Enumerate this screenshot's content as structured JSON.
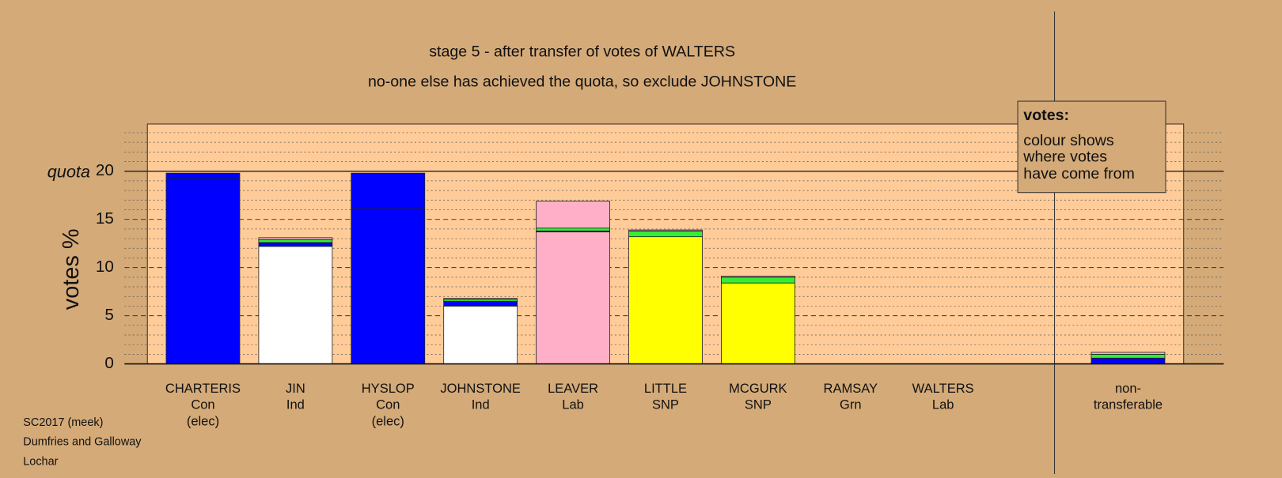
{
  "chart_data": {
    "type": "stacked-bar",
    "title": "stage 5 - after transfer of votes of WALTERS",
    "subtitle": "no-one else has achieved the quota, so exclude JOHNSTONE",
    "y_label": "votes %",
    "quota": 20,
    "quota_label": "quota",
    "categories": [
      [
        "CHARTERIS",
        "Con",
        "(elec)"
      ],
      [
        "JIN",
        "Ind"
      ],
      [
        "HYSLOP",
        "Con",
        "(elec)"
      ],
      [
        "JOHNSTONE",
        "Ind"
      ],
      [
        "LEAVER",
        "Lab"
      ],
      [
        "LITTLE",
        "SNP"
      ],
      [
        "MCGURK",
        "SNP"
      ],
      [
        "RAMSAY",
        "Grn"
      ],
      [
        "WALTERS",
        "Lab"
      ],
      [
        "non-",
        "transferable"
      ]
    ],
    "series": [
      {
        "color": "#0000ff",
        "values": [
          19.2,
          0,
          16.1,
          0,
          0,
          0,
          0,
          0,
          0,
          0
        ]
      },
      {
        "color": "#ffffff",
        "values": [
          0,
          12.2,
          0,
          6.0,
          0,
          0,
          0,
          0,
          0,
          0
        ]
      },
      {
        "color": "#ffb0c8",
        "values": [
          0,
          0,
          0,
          0,
          13.7,
          0,
          0,
          0,
          0,
          0
        ]
      },
      {
        "color": "#ffff00",
        "values": [
          0,
          0,
          0,
          0,
          0,
          13.2,
          8.4,
          0,
          0,
          0
        ]
      },
      {
        "color": "#0000ff",
        "values": [
          0.6,
          0.4,
          3.7,
          0.5,
          0.1,
          0,
          0,
          0,
          0,
          0.6
        ]
      },
      {
        "color": "#33ee33",
        "values": [
          0,
          0.3,
          0,
          0.2,
          0.3,
          0.6,
          0.6,
          0,
          0,
          0.4
        ]
      },
      {
        "color": "#ffb0c8",
        "values": [
          0,
          0.2,
          0,
          0.1,
          2.8,
          0.1,
          0.1,
          0,
          0,
          0.2
        ]
      }
    ],
    "ylim": [
      0,
      24.9
    ],
    "yticks": [
      0,
      5,
      10,
      15,
      20
    ],
    "minor_yticks": [
      1,
      2,
      3,
      4,
      6,
      7,
      8,
      9,
      11,
      12,
      13,
      14,
      16,
      17,
      18,
      19,
      21,
      22,
      23,
      24
    ],
    "legend": {
      "title": "votes:",
      "lines": [
        "colour shows",
        "where votes",
        "have come from"
      ]
    },
    "footer": [
      "SC2017 (meek)",
      "Dumfries and Galloway",
      "Lochar"
    ]
  }
}
